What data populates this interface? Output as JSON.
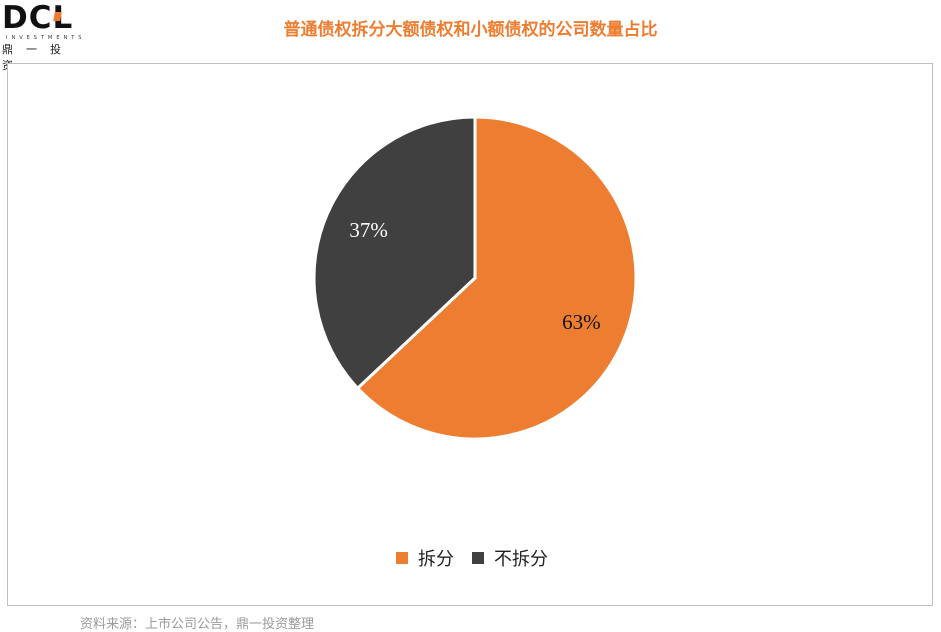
{
  "logo": {
    "mark": "DCL",
    "sub": "INVESTMENTS",
    "cn": "鼎一投资",
    "accent_color": "#ed7d31"
  },
  "chart_data": {
    "type": "pie",
    "title": "普通债权拆分大额债权和小额债权的公司数量占比",
    "categories": [
      "拆分",
      "不拆分"
    ],
    "values": [
      63,
      37
    ],
    "labels": [
      "63%",
      "37%"
    ],
    "colors": [
      "#ed7d31",
      "#404040"
    ],
    "legend_position": "bottom"
  },
  "source": "资料来源：上市公司公告，鼎一投资整理"
}
